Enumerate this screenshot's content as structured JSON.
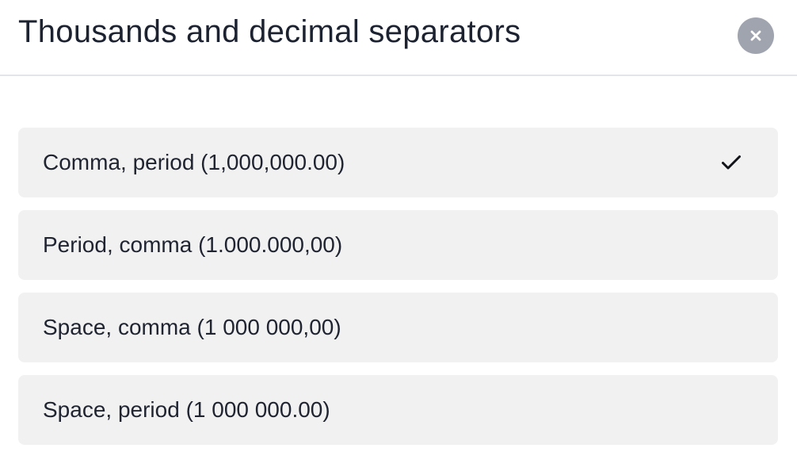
{
  "dialog": {
    "title": "Thousands and decimal separators",
    "close_icon": "close-icon"
  },
  "options": [
    {
      "label": "Comma, period (1,000,000.00)",
      "selected": true
    },
    {
      "label": "Period, comma (1.000.000,00)",
      "selected": false
    },
    {
      "label": "Space, comma (1 000 000,00)",
      "selected": false
    },
    {
      "label": "Space, period (1 000 000.00)",
      "selected": false
    }
  ],
  "colors": {
    "option_background": "#f1f1f2",
    "close_button_background": "#a0a4ae",
    "text": "#1f2430"
  },
  "icons": {
    "selected_indicator": "check-icon"
  }
}
